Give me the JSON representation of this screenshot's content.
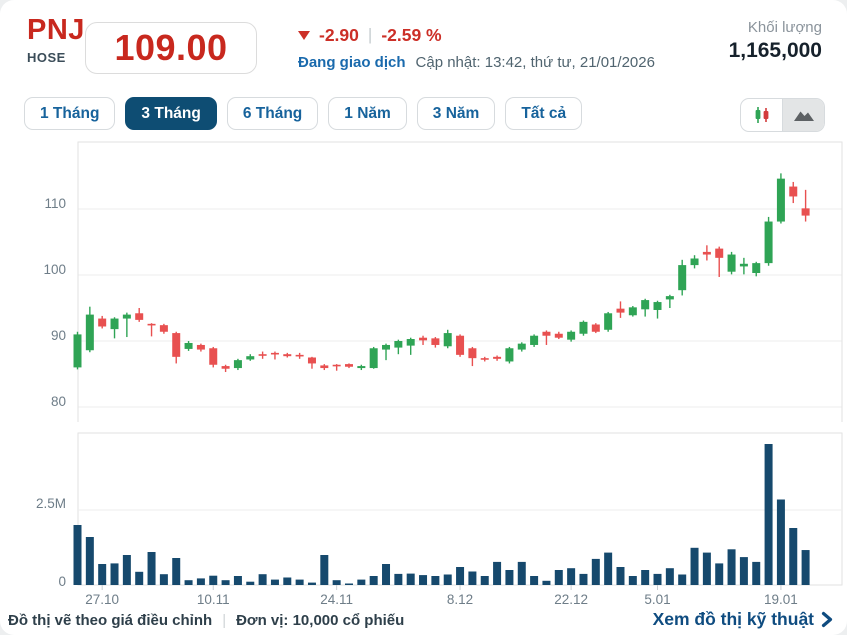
{
  "header": {
    "symbol": "PNJ",
    "exchange": "HOSE",
    "price": "109.00",
    "change": "-2.90",
    "change_percent": "-2.59 %",
    "status": "Đang giao dịch",
    "updated": "Cập nhật: 13:42, thứ tư, 21/01/2026",
    "volume_label": "Khối lượng",
    "volume_value": "1,165,000"
  },
  "tabs": [
    {
      "label": "1 Tháng",
      "active": false
    },
    {
      "label": "3 Tháng",
      "active": true
    },
    {
      "label": "6 Tháng",
      "active": false
    },
    {
      "label": "1 Năm",
      "active": false
    },
    {
      "label": "3 Năm",
      "active": false
    },
    {
      "label": "Tất cả",
      "active": false
    }
  ],
  "chart_toggle": {
    "candlestick_selected": true,
    "area_selected": false
  },
  "footer": {
    "note": "Đồ thị vẽ theo giá điều chỉnh",
    "unit": "Đơn vị: 10,000 cổ phiếu",
    "link": "Xem đồ thị kỹ thuật"
  },
  "colors": {
    "up": "#2fa455",
    "down": "#e85050",
    "volume": "#16496d",
    "brand_red": "#c8281e",
    "change_red": "#cc2f27",
    "status_blue": "#1a6aad",
    "tab_active": "#0e4d73",
    "link_navy": "#0f4c80",
    "grid": "#ededed",
    "frame": "#e2e2e2",
    "axis_text": "#6e7d88"
  },
  "chart_data": {
    "type": "candlestick+volume",
    "title": "PNJ 3-month daily price (adjusted) with volume",
    "price_axis": {
      "ticks": [
        110,
        100,
        90,
        80
      ],
      "ylim": [
        77.5,
        120
      ]
    },
    "volume_axis": {
      "ticks": [
        {
          "label": "2.5M",
          "value": 2.5
        },
        {
          "label": "0",
          "value": 0
        }
      ],
      "ylim_m": [
        0,
        5.1
      ]
    },
    "x_ticks": [
      {
        "label": "27.10",
        "index": 2
      },
      {
        "label": "10.11",
        "index": 11
      },
      {
        "label": "24.11",
        "index": 21
      },
      {
        "label": "8.12",
        "index": 31
      },
      {
        "label": "22.12",
        "index": 40
      },
      {
        "label": "5.01",
        "index": 47
      },
      {
        "label": "19.01",
        "index": 57
      }
    ],
    "candles": [
      [
        86.0,
        91.4,
        85.7,
        91.0
      ],
      [
        88.6,
        95.2,
        88.3,
        94.0
      ],
      [
        93.4,
        93.8,
        91.9,
        92.2
      ],
      [
        91.8,
        93.6,
        90.4,
        93.4
      ],
      [
        93.4,
        94.3,
        90.6,
        94.0
      ],
      [
        94.2,
        95.0,
        92.9,
        93.2
      ],
      [
        92.6,
        92.7,
        90.7,
        92.4
      ],
      [
        92.4,
        92.6,
        91.1,
        91.4
      ],
      [
        91.2,
        91.4,
        86.6,
        87.6
      ],
      [
        88.8,
        90.0,
        88.5,
        89.7
      ],
      [
        89.4,
        89.6,
        88.4,
        88.7
      ],
      [
        88.9,
        89.1,
        86.0,
        86.4
      ],
      [
        86.2,
        86.4,
        85.3,
        85.8
      ],
      [
        85.9,
        87.3,
        85.6,
        87.1
      ],
      [
        87.2,
        88.0,
        87.0,
        87.7
      ],
      [
        88.0,
        88.4,
        87.3,
        87.8
      ],
      [
        88.2,
        88.4,
        87.2,
        88.0
      ],
      [
        88.0,
        88.2,
        87.5,
        87.7
      ],
      [
        87.9,
        88.2,
        87.3,
        87.8
      ],
      [
        87.5,
        87.6,
        85.8,
        86.6
      ],
      [
        86.3,
        86.5,
        85.6,
        85.9
      ],
      [
        86.4,
        86.5,
        85.5,
        86.2
      ],
      [
        86.5,
        86.6,
        85.9,
        86.1
      ],
      [
        85.9,
        86.4,
        85.6,
        86.2
      ],
      [
        85.9,
        89.1,
        85.8,
        88.9
      ],
      [
        88.7,
        89.6,
        87.1,
        89.4
      ],
      [
        89.0,
        90.2,
        88.0,
        90.0
      ],
      [
        89.3,
        90.5,
        87.9,
        90.3
      ],
      [
        90.5,
        90.8,
        89.4,
        90.1
      ],
      [
        90.4,
        90.6,
        89.0,
        89.4
      ],
      [
        89.2,
        91.7,
        88.9,
        91.2
      ],
      [
        90.8,
        91.0,
        87.6,
        87.9
      ],
      [
        88.9,
        89.1,
        86.2,
        87.4
      ],
      [
        87.4,
        87.6,
        86.9,
        87.2
      ],
      [
        87.6,
        87.8,
        87.0,
        87.3
      ],
      [
        86.9,
        89.1,
        86.6,
        88.9
      ],
      [
        88.7,
        89.8,
        88.4,
        89.6
      ],
      [
        89.4,
        91.0,
        89.1,
        90.8
      ],
      [
        91.4,
        91.6,
        89.4,
        90.8
      ],
      [
        91.1,
        91.4,
        90.3,
        90.5
      ],
      [
        90.2,
        91.6,
        89.9,
        91.4
      ],
      [
        91.1,
        93.1,
        90.8,
        92.9
      ],
      [
        92.5,
        92.7,
        91.2,
        91.4
      ],
      [
        91.7,
        94.4,
        91.4,
        94.2
      ],
      [
        94.9,
        96.0,
        93.5,
        94.3
      ],
      [
        93.9,
        95.3,
        93.7,
        95.1
      ],
      [
        94.8,
        96.4,
        93.7,
        96.2
      ],
      [
        94.7,
        96.1,
        93.4,
        95.9
      ],
      [
        96.3,
        97.0,
        95.0,
        96.8
      ],
      [
        97.7,
        102.3,
        96.9,
        101.5
      ],
      [
        101.5,
        103.0,
        101.0,
        102.5
      ],
      [
        103.5,
        104.5,
        102.2,
        103.1
      ],
      [
        104.0,
        104.3,
        99.7,
        102.6
      ],
      [
        100.5,
        103.5,
        100.1,
        103.1
      ],
      [
        101.3,
        102.6,
        100.1,
        101.7
      ],
      [
        100.3,
        102.0,
        99.8,
        101.8
      ],
      [
        101.8,
        108.8,
        101.4,
        108.1
      ],
      [
        108.1,
        115.4,
        107.8,
        114.6
      ],
      [
        113.4,
        114.1,
        110.9,
        111.9
      ],
      [
        110.1,
        112.9,
        108.1,
        109.0
      ]
    ],
    "volumes_m": [
      2.0,
      1.6,
      0.7,
      0.72,
      1.0,
      0.44,
      1.1,
      0.36,
      0.9,
      0.16,
      0.22,
      0.31,
      0.16,
      0.3,
      0.11,
      0.36,
      0.18,
      0.25,
      0.18,
      0.08,
      1.0,
      0.16,
      0.05,
      0.18,
      0.3,
      0.7,
      0.37,
      0.38,
      0.33,
      0.3,
      0.35,
      0.6,
      0.45,
      0.3,
      0.77,
      0.5,
      0.77,
      0.3,
      0.14,
      0.5,
      0.56,
      0.37,
      0.87,
      1.08,
      0.6,
      0.3,
      0.5,
      0.37,
      0.56,
      0.35,
      1.24,
      1.08,
      0.72,
      1.19,
      0.93,
      0.77,
      4.7,
      2.85,
      1.9,
      1.165
    ]
  }
}
